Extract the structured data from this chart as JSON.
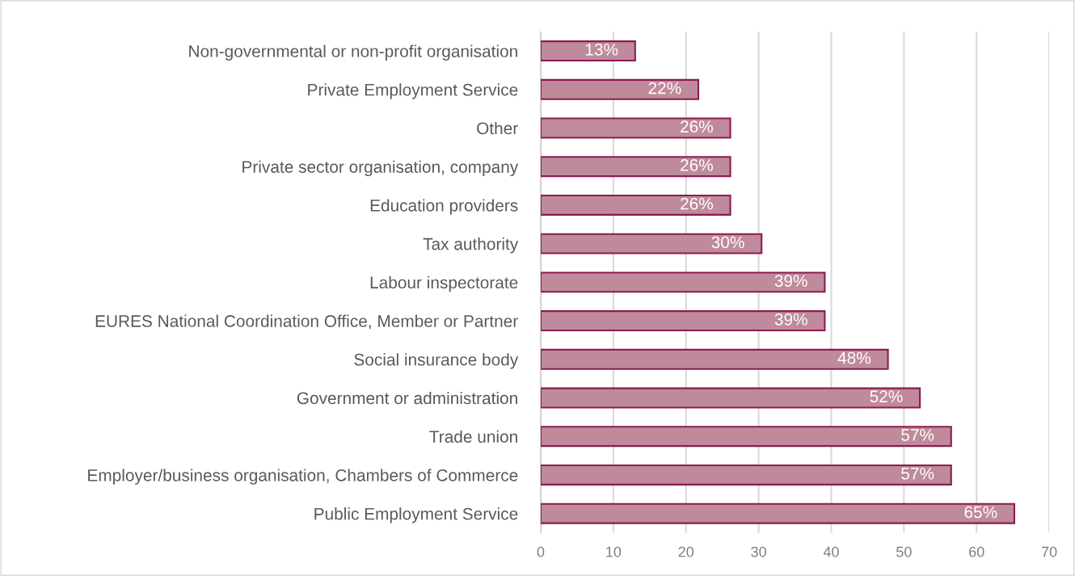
{
  "chart_data": {
    "type": "bar",
    "orientation": "horizontal",
    "categories": [
      "Non-governmental or non-profit organisation",
      "Private Employment Service",
      "Other",
      "Private sector organisation, company",
      "Education providers",
      "Tax authority",
      "Labour inspectorate",
      "EURES National Coordination Office, Member or Partner",
      "Social insurance body",
      "Government or administration",
      "Trade union",
      "Employer/business organisation, Chambers of Commerce",
      "Public Employment Service"
    ],
    "values": [
      13.0,
      21.7,
      26.1,
      26.1,
      26.1,
      30.4,
      39.1,
      39.1,
      47.8,
      52.2,
      56.5,
      56.5,
      65.2
    ],
    "value_labels": [
      "13%",
      "22%",
      "26%",
      "26%",
      "26%",
      "30%",
      "39%",
      "39%",
      "48%",
      "52%",
      "57%",
      "57%",
      "65%"
    ],
    "color": "#bf8a9b",
    "xlim": [
      0,
      70
    ],
    "xticks": [
      0,
      10,
      20,
      30,
      40,
      50,
      60,
      70
    ],
    "grid": "x"
  }
}
